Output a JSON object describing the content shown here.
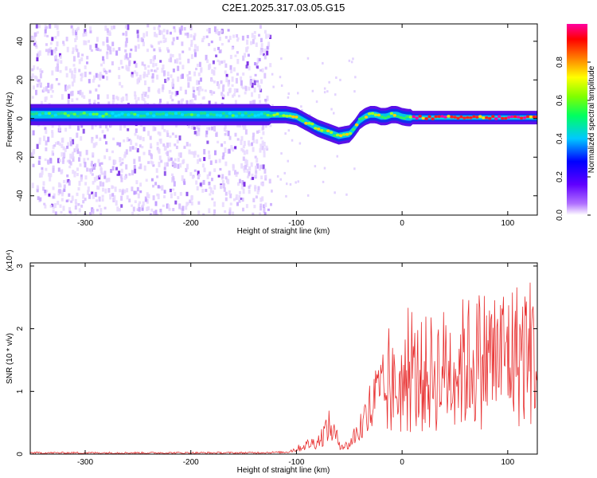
{
  "chart_data": [
    {
      "type": "heatmap",
      "title": "C2E1.2025.317.03.05.G15",
      "xlabel": "Height of straight line (km)",
      "ylabel": "Frequency (Hz)",
      "xlim": [
        -352,
        128
      ],
      "ylim": [
        -50,
        49
      ],
      "xticks": [
        -300,
        -200,
        -100,
        0,
        100
      ],
      "yticks": [
        -40,
        -20,
        0,
        20,
        40
      ],
      "colorbar": {
        "label": "Normalized spectral amplitude",
        "range": [
          0,
          1
        ],
        "ticks": [
          "0.0",
          "0.2",
          "0.4",
          "0.6",
          "0.8"
        ]
      },
      "ridge": {
        "x": [
          -352,
          -300,
          -250,
          -200,
          -150,
          -125,
          -110,
          -100,
          -90,
          -80,
          -70,
          -60,
          -50,
          -45,
          -40,
          -35,
          -30,
          -25,
          -20,
          -15,
          -10,
          -5,
          0,
          5,
          10,
          50,
          100,
          128
        ],
        "y": [
          2,
          2,
          2,
          2,
          2,
          2,
          2,
          1,
          -2,
          -5,
          -7,
          -9,
          -8,
          -5,
          -1,
          1,
          2,
          2,
          1,
          1,
          2,
          2,
          1,
          0.5,
          0.5,
          0.5,
          0.5,
          0.5
        ]
      },
      "noise_region_x": [
        -352,
        -125
      ]
    },
    {
      "type": "line",
      "xlabel": "Height of straight line (km)",
      "ylabel": "SNR (10 * v/v)",
      "y_multiplier": "(x10⁴)",
      "xlim": [
        -352,
        128
      ],
      "ylim": [
        0,
        3.05
      ],
      "xticks": [
        -300,
        -200,
        -100,
        0,
        100
      ],
      "yticks": [
        0,
        1,
        2,
        3
      ],
      "series": [
        {
          "color": "#e83030",
          "x": [
            -352,
            -300,
            -250,
            -200,
            -150,
            -110,
            -100,
            -90,
            -80,
            -75,
            -70,
            -65,
            -60,
            -55,
            -50,
            -45,
            -40,
            -35,
            -30,
            -25,
            -20,
            -15,
            -10,
            -5,
            0,
            10,
            20,
            30,
            40,
            50,
            60,
            70,
            80,
            90,
            100,
            110,
            120,
            128
          ],
          "y": [
            0.02,
            0.02,
            0.02,
            0.02,
            0.02,
            0.03,
            0.08,
            0.15,
            0.2,
            0.3,
            0.45,
            0.35,
            0.2,
            0.12,
            0.15,
            0.3,
            0.4,
            0.55,
            0.7,
            0.85,
            0.9,
            0.95,
            1.0,
            1.05,
            1.1,
            1.2,
            1.25,
            1.3,
            1.35,
            1.4,
            1.45,
            1.5,
            1.55,
            1.55,
            1.6,
            1.6,
            1.65,
            1.6
          ]
        }
      ]
    }
  ]
}
